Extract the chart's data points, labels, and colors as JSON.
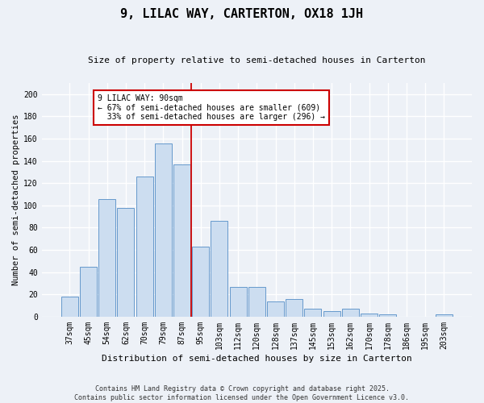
{
  "title": "9, LILAC WAY, CARTERTON, OX18 1JH",
  "subtitle": "Size of property relative to semi-detached houses in Carterton",
  "xlabel": "Distribution of semi-detached houses by size in Carterton",
  "ylabel": "Number of semi-detached properties",
  "categories": [
    "37sqm",
    "45sqm",
    "54sqm",
    "62sqm",
    "70sqm",
    "79sqm",
    "87sqm",
    "95sqm",
    "103sqm",
    "112sqm",
    "120sqm",
    "128sqm",
    "137sqm",
    "145sqm",
    "153sqm",
    "162sqm",
    "170sqm",
    "178sqm",
    "186sqm",
    "195sqm",
    "203sqm"
  ],
  "values": [
    18,
    45,
    106,
    98,
    126,
    156,
    137,
    63,
    86,
    27,
    27,
    14,
    16,
    7,
    5,
    7,
    3,
    2,
    0,
    0,
    2
  ],
  "bar_color": "#ccddf0",
  "bar_edge_color": "#6699cc",
  "vline_x": 7.0,
  "annotation_text": "9 LILAC WAY: 90sqm\n← 67% of semi-detached houses are smaller (609)\n  33% of semi-detached houses are larger (296) →",
  "annotation_box_facecolor": "#ffffff",
  "annotation_box_edgecolor": "#cc0000",
  "footer_line1": "Contains HM Land Registry data © Crown copyright and database right 2025.",
  "footer_line2": "Contains public sector information licensed under the Open Government Licence v3.0.",
  "ylim": [
    0,
    210
  ],
  "yticks": [
    0,
    20,
    40,
    60,
    80,
    100,
    120,
    140,
    160,
    180,
    200
  ],
  "background_color": "#edf1f7",
  "plot_background": "#edf1f7",
  "grid_color": "#ffffff",
  "vline_color": "#cc0000",
  "title_fontsize": 11,
  "subtitle_fontsize": 8,
  "tick_fontsize": 7,
  "ylabel_fontsize": 7.5,
  "xlabel_fontsize": 8,
  "footer_fontsize": 6,
  "annotation_fontsize": 7
}
